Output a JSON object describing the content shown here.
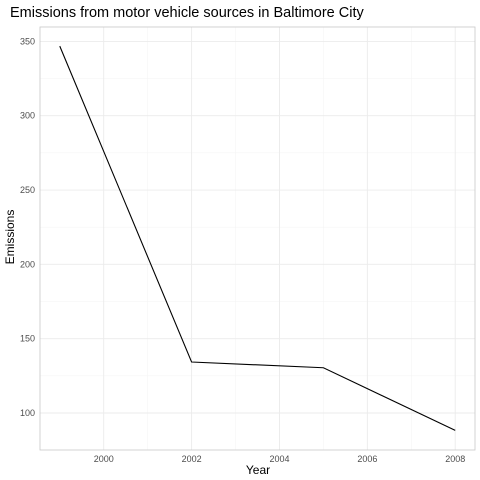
{
  "chart_data": {
    "type": "line",
    "title": "Emissions from motor vehicle sources in Baltimore City",
    "xlabel": "Year",
    "ylabel": "Emissions",
    "x": [
      1999,
      2002,
      2005,
      2008
    ],
    "series": [
      {
        "values": [
          346.82,
          134.31,
          130.43,
          88.28
        ],
        "color": "#000000"
      }
    ],
    "xlim": [
      1998.55,
      2008.45
    ],
    "ylim": [
      75.1,
      359.7
    ],
    "x_ticks": [
      2000,
      2002,
      2004,
      2006,
      2008
    ],
    "x_tick_labels": [
      "2000",
      "2002",
      "2004",
      "2006",
      "2008"
    ],
    "y_ticks": [
      100,
      150,
      200,
      250,
      300,
      350
    ],
    "y_tick_labels": [
      "100",
      "150",
      "200",
      "250",
      "300",
      "350"
    ],
    "grid": true,
    "theme": "light"
  }
}
